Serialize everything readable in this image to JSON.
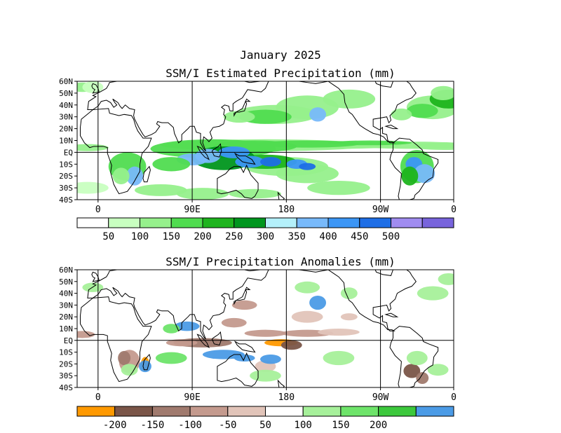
{
  "header": {
    "date_title": "January 2025",
    "top_title": "SSM/I Estimated Precipitation (mm)",
    "bottom_title": "SSM/I Precipitation Anomalies (mm)"
  },
  "axes": {
    "lat_top": [
      "60N",
      "50N",
      "40N",
      "30N",
      "20N",
      "10N",
      "EQ",
      "10S",
      "20S",
      "30S",
      "40S"
    ],
    "lon": [
      "0",
      "90E",
      "180",
      "90W",
      "0"
    ]
  },
  "colorbar_top": {
    "colors": [
      "#ffffff",
      "#c8ffc0",
      "#96f08c",
      "#50dc50",
      "#1eb41e",
      "#00961e",
      "#b4f0fa",
      "#78b9fa",
      "#3c96f5",
      "#1e6ee6",
      "#a08cf0",
      "#7864dc"
    ],
    "labels": [
      "50",
      "100",
      "150",
      "200",
      "250",
      "300",
      "350",
      "400",
      "450",
      "500"
    ]
  },
  "colorbar_bottom": {
    "colors": [
      "#ff9900",
      "#7a5548",
      "#a07a6e",
      "#c49a8e",
      "#e1c4b9",
      "#ffffff",
      "#a6f09a",
      "#6ee46a",
      "#3cc83c",
      "#4b9be6"
    ],
    "labels": [
      "-200",
      "-150",
      "-100",
      "-50",
      "50",
      "100",
      "150",
      "200"
    ]
  }
}
